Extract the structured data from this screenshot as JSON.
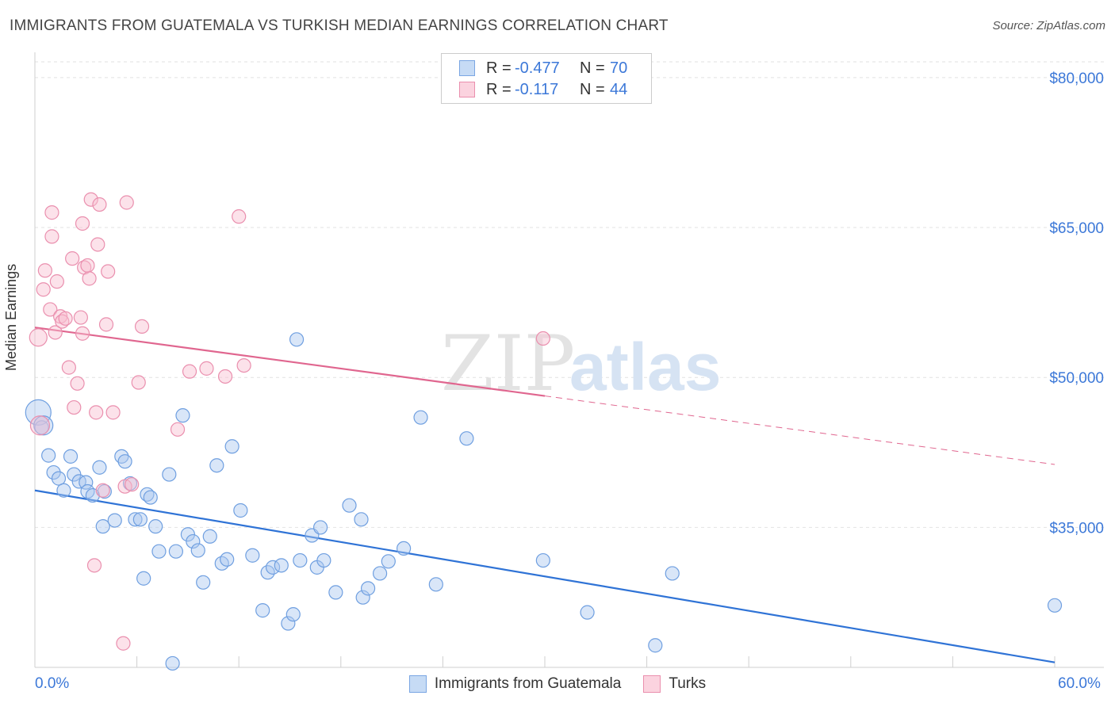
{
  "title": "IMMIGRANTS FROM GUATEMALA VS TURKISH MEDIAN EARNINGS CORRELATION CHART",
  "source": "Source: ZipAtlas.com",
  "watermark": {
    "zip": "ZIP",
    "atlas": "atlas"
  },
  "legend": {
    "rows": [
      {
        "r_label": "R =",
        "r_value": "-0.477",
        "n_label": "N =",
        "n_value": "70",
        "color": "#5b95e0"
      },
      {
        "r_label": "R =",
        "r_value": "-0.117",
        "n_label": "N =",
        "n_value": "44",
        "color": "#e87a9d"
      }
    ]
  },
  "bottom_legend": [
    "Immigrants from Guatemala",
    "Turks"
  ],
  "x_tick_left": "0.0%",
  "x_tick_right": "60.0%",
  "chart_data": {
    "type": "scatter",
    "xlabel": "",
    "ylabel": "Median Earnings",
    "xlim": [
      0,
      60
    ],
    "ylim": [
      21000,
      83000
    ],
    "y_ticks": [
      {
        "value": 80000,
        "label": "$80,000"
      },
      {
        "value": 65000,
        "label": "$65,000"
      },
      {
        "value": 50000,
        "label": "$50,000"
      },
      {
        "value": 35000,
        "label": "$35,000"
      }
    ],
    "grid": true,
    "legend_position": "top-center",
    "series": [
      {
        "name": "Immigrants from Guatemala",
        "color": "#5b95e0",
        "trend": {
          "x0": 0,
          "y0": 38700,
          "x1": 60,
          "y1": 21500,
          "dashed_from": null
        },
        "points": [
          [
            0.2,
            46500
          ],
          [
            0.4,
            45000
          ],
          [
            0.8,
            42200
          ],
          [
            1.1,
            40500
          ],
          [
            1.4,
            39900
          ],
          [
            1.7,
            38700
          ],
          [
            2.1,
            42100
          ],
          [
            2.3,
            40300
          ],
          [
            2.6,
            39600
          ],
          [
            3.0,
            39500
          ],
          [
            3.1,
            38600
          ],
          [
            3.4,
            38200
          ],
          [
            3.8,
            41000
          ],
          [
            4.1,
            38600
          ],
          [
            4.0,
            35100
          ],
          [
            4.7,
            35700
          ],
          [
            5.1,
            42100
          ],
          [
            5.3,
            41600
          ],
          [
            5.6,
            39400
          ],
          [
            5.9,
            35800
          ],
          [
            6.2,
            35800
          ],
          [
            6.4,
            29900
          ],
          [
            6.6,
            38300
          ],
          [
            6.8,
            38000
          ],
          [
            7.1,
            35100
          ],
          [
            7.3,
            32600
          ],
          [
            7.9,
            40300
          ],
          [
            8.1,
            21400
          ],
          [
            8.3,
            32600
          ],
          [
            8.7,
            46200
          ],
          [
            9.0,
            34300
          ],
          [
            9.3,
            33600
          ],
          [
            9.6,
            32700
          ],
          [
            9.9,
            29500
          ],
          [
            10.3,
            34100
          ],
          [
            10.7,
            41200
          ],
          [
            11.0,
            31400
          ],
          [
            11.3,
            31800
          ],
          [
            11.6,
            43100
          ],
          [
            12.1,
            36700
          ],
          [
            12.8,
            32200
          ],
          [
            13.4,
            26700
          ],
          [
            13.7,
            30500
          ],
          [
            14.0,
            31000
          ],
          [
            14.5,
            31200
          ],
          [
            14.9,
            25400
          ],
          [
            15.2,
            26300
          ],
          [
            15.4,
            53800
          ],
          [
            15.6,
            31700
          ],
          [
            16.3,
            34200
          ],
          [
            16.6,
            31000
          ],
          [
            16.8,
            35000
          ],
          [
            17.0,
            31700
          ],
          [
            17.7,
            28500
          ],
          [
            18.5,
            37200
          ],
          [
            19.2,
            35800
          ],
          [
            19.3,
            28000
          ],
          [
            19.6,
            28900
          ],
          [
            20.3,
            30400
          ],
          [
            20.8,
            31600
          ],
          [
            21.7,
            32900
          ],
          [
            22.7,
            46000
          ],
          [
            23.6,
            29300
          ],
          [
            25.4,
            43900
          ],
          [
            29.9,
            31700
          ],
          [
            32.5,
            26500
          ],
          [
            36.5,
            23200
          ],
          [
            37.5,
            30400
          ],
          [
            60.0,
            27200
          ],
          [
            0.5,
            45200
          ]
        ]
      },
      {
        "name": "Turks",
        "color": "#e87a9d",
        "trend": {
          "x0": 0,
          "y0": 55000,
          "x1": 60,
          "y1": 41300,
          "dashed_from": 30
        },
        "points": [
          [
            0.2,
            54000
          ],
          [
            0.3,
            45200
          ],
          [
            0.5,
            58800
          ],
          [
            0.6,
            60700
          ],
          [
            0.9,
            56800
          ],
          [
            1.0,
            64100
          ],
          [
            1.0,
            66500
          ],
          [
            1.2,
            54500
          ],
          [
            1.3,
            59600
          ],
          [
            1.5,
            56100
          ],
          [
            1.6,
            55600
          ],
          [
            1.8,
            55900
          ],
          [
            2.0,
            51000
          ],
          [
            2.2,
            61900
          ],
          [
            2.3,
            47000
          ],
          [
            2.5,
            49400
          ],
          [
            2.7,
            56000
          ],
          [
            2.8,
            54400
          ],
          [
            2.8,
            65400
          ],
          [
            2.9,
            61000
          ],
          [
            3.1,
            61200
          ],
          [
            3.2,
            59900
          ],
          [
            3.3,
            67800
          ],
          [
            3.5,
            31200
          ],
          [
            3.6,
            46500
          ],
          [
            3.7,
            63300
          ],
          [
            3.8,
            67300
          ],
          [
            4.0,
            38700
          ],
          [
            4.2,
            55300
          ],
          [
            4.3,
            60600
          ],
          [
            4.6,
            46500
          ],
          [
            5.2,
            23400
          ],
          [
            5.3,
            39100
          ],
          [
            5.4,
            67500
          ],
          [
            5.7,
            39300
          ],
          [
            6.1,
            49500
          ],
          [
            6.3,
            55100
          ],
          [
            8.4,
            44800
          ],
          [
            9.1,
            50600
          ],
          [
            10.1,
            50900
          ],
          [
            11.2,
            50100
          ],
          [
            12.0,
            66100
          ],
          [
            12.3,
            51200
          ],
          [
            29.9,
            53900
          ]
        ]
      }
    ]
  }
}
